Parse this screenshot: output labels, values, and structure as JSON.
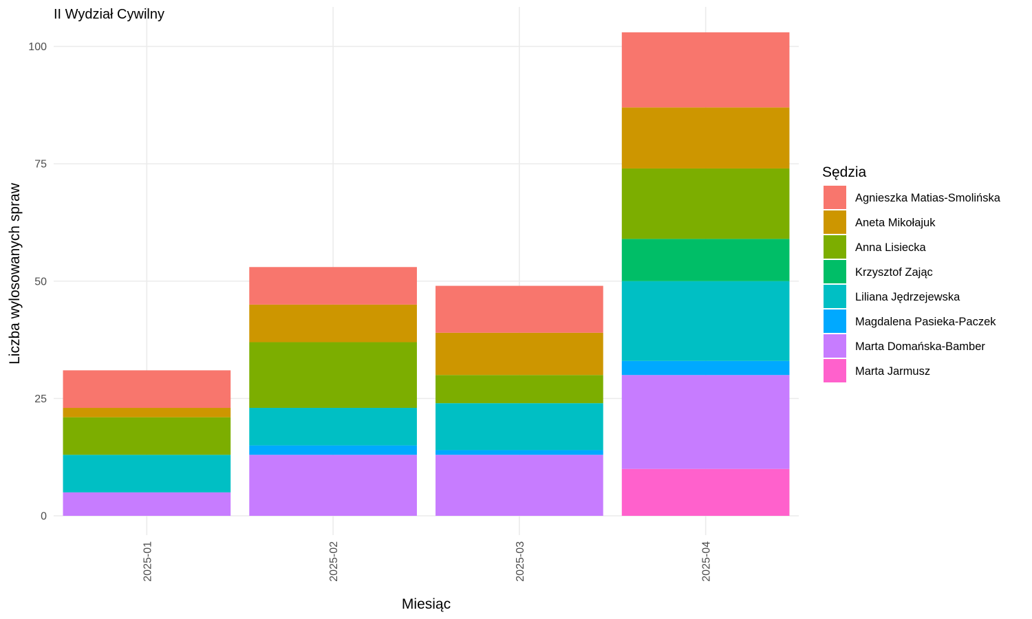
{
  "chart_data": {
    "type": "bar",
    "stacked": true,
    "title": "II Wydział Cywilny",
    "xlabel": "Miesiąc",
    "ylabel": "Liczba wylosowanych spraw",
    "categories": [
      "2025-01",
      "2025-02",
      "2025-03",
      "2025-04"
    ],
    "ylim": [
      0,
      103
    ],
    "yticks": [
      0,
      25,
      50,
      75,
      100
    ],
    "grid": true,
    "legend": {
      "title": "Sędzia",
      "position": "right"
    },
    "series": [
      {
        "name": "Marta Jarmusz",
        "color": "#FF61CC",
        "values": [
          0,
          0,
          0,
          10
        ]
      },
      {
        "name": "Marta Domańska-Bamber",
        "color": "#C77CFF",
        "values": [
          5,
          13,
          13,
          20
        ]
      },
      {
        "name": "Magdalena Pasieka-Paczek",
        "color": "#00A9FF",
        "values": [
          0,
          2,
          1,
          3
        ]
      },
      {
        "name": "Liliana Jędrzejewska",
        "color": "#00BFC4",
        "values": [
          8,
          8,
          10,
          17
        ]
      },
      {
        "name": "Krzysztof Zając",
        "color": "#00BE67",
        "values": [
          0,
          0,
          0,
          9
        ]
      },
      {
        "name": "Anna Lisiecka",
        "color": "#7CAE00",
        "values": [
          8,
          14,
          6,
          15
        ]
      },
      {
        "name": "Aneta Mikołajuk",
        "color": "#CD9600",
        "values": [
          2,
          8,
          9,
          13
        ]
      },
      {
        "name": "Agnieszka Matias-Smolińska",
        "color": "#F8766D",
        "values": [
          8,
          8,
          10,
          16
        ]
      }
    ]
  }
}
